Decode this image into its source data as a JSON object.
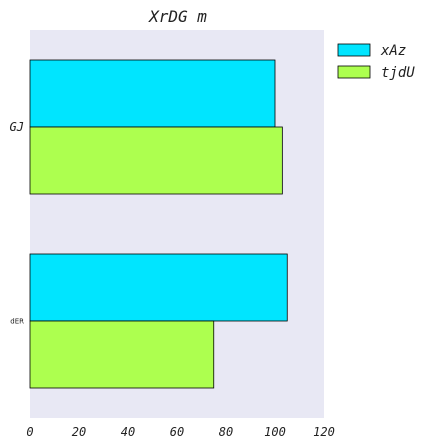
{
  "chart_data": {
    "type": "bar",
    "orientation": "horizontal",
    "title": "XrDG m",
    "xlabel": "",
    "ylabel": "",
    "categories": [
      "GJ",
      "dER"
    ],
    "series": [
      {
        "name": "xAz",
        "values": [
          100,
          105
        ],
        "color": "#00e5ff"
      },
      {
        "name": "tjdU",
        "values": [
          103,
          75
        ],
        "color": "#adff4f"
      }
    ],
    "xlim": [
      0,
      120
    ],
    "xticks": [
      "0",
      "20",
      "40",
      "60",
      "80",
      "100",
      "120"
    ],
    "xtick_values": [
      0,
      20,
      40,
      60,
      80,
      100,
      120
    ],
    "grid": false,
    "legend_position": "outside-top-right",
    "plot_background": "#e8e8f4"
  }
}
